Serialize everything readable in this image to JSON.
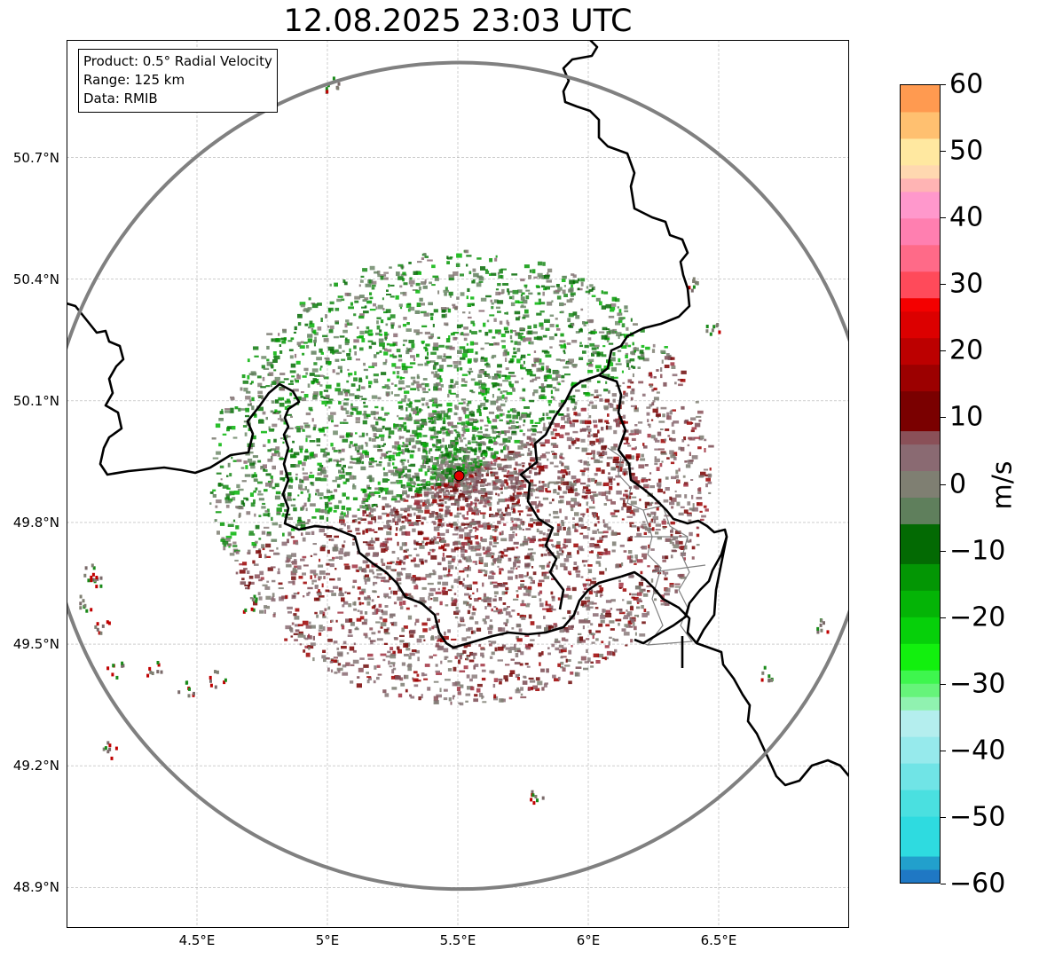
{
  "title": "12.08.2025 23:03 UTC",
  "info": {
    "product": "Product: 0.5° Radial Velocity",
    "range": "Range: 125 km",
    "data": "Data: RMIB"
  },
  "map": {
    "lon_range": [
      4.0,
      7.0
    ],
    "lat_range": [
      48.8,
      50.99
    ],
    "radar_site": {
      "lon": 5.505,
      "lat": 49.915
    },
    "range_ring_km": 125,
    "x_ticks": [
      {
        "lon": 4.5,
        "label": "4.5°E"
      },
      {
        "lon": 5.0,
        "label": "5°E"
      },
      {
        "lon": 5.5,
        "label": "5.5°E"
      },
      {
        "lon": 6.0,
        "label": "6°E"
      },
      {
        "lon": 6.5,
        "label": "6.5°E"
      }
    ],
    "y_ticks": [
      {
        "lat": 50.7,
        "label": "50.7°N"
      },
      {
        "lat": 50.4,
        "label": "50.4°N"
      },
      {
        "lat": 50.1,
        "label": "50.1°N"
      },
      {
        "lat": 49.8,
        "label": "49.8°N"
      },
      {
        "lat": 49.5,
        "label": "49.5°N"
      },
      {
        "lat": 49.2,
        "label": "49.2°N"
      },
      {
        "lat": 48.9,
        "label": "48.9°N"
      }
    ],
    "grid": true,
    "colors": {
      "ring": "#808080",
      "border": "#000000",
      "admin_border": "#808080",
      "grid": "#b0b0b0",
      "site": "#e00000"
    }
  },
  "colorbar": {
    "unit": "m/s",
    "min": -60,
    "max": 60,
    "ticks": [
      {
        "value": 60,
        "label": "60"
      },
      {
        "value": 50,
        "label": "50"
      },
      {
        "value": 40,
        "label": "40"
      },
      {
        "value": 30,
        "label": "30"
      },
      {
        "value": 20,
        "label": "20"
      },
      {
        "value": 10,
        "label": "10"
      },
      {
        "value": 0,
        "label": "0"
      },
      {
        "value": -10,
        "label": "−10"
      },
      {
        "value": -20,
        "label": "−20"
      },
      {
        "value": -30,
        "label": "−30"
      },
      {
        "value": -40,
        "label": "−40"
      },
      {
        "value": -50,
        "label": "−50"
      },
      {
        "value": -60,
        "label": "−60"
      }
    ],
    "stops": [
      {
        "from": -60,
        "to": -58,
        "color": "#1f78c4"
      },
      {
        "from": -58,
        "to": -56,
        "color": "#22a0cc"
      },
      {
        "from": -56,
        "to": -50,
        "color": "#2edbe0"
      },
      {
        "from": -50,
        "to": -46,
        "color": "#4ae0e0"
      },
      {
        "from": -46,
        "to": -42,
        "color": "#70e4e6"
      },
      {
        "from": -42,
        "to": -38,
        "color": "#96eaec"
      },
      {
        "from": -38,
        "to": -34,
        "color": "#b4eeee"
      },
      {
        "from": -34,
        "to": -32,
        "color": "#90f2b0"
      },
      {
        "from": -32,
        "to": -30,
        "color": "#66f47a"
      },
      {
        "from": -30,
        "to": -28,
        "color": "#3ef64e"
      },
      {
        "from": -28,
        "to": -24,
        "color": "#12f00e"
      },
      {
        "from": -24,
        "to": -20,
        "color": "#06d00a"
      },
      {
        "from": -20,
        "to": -16,
        "color": "#04b406"
      },
      {
        "from": -16,
        "to": -12,
        "color": "#039604"
      },
      {
        "from": -12,
        "to": -6,
        "color": "#036a03"
      },
      {
        "from": -6,
        "to": -2,
        "color": "#5f7f5c"
      },
      {
        "from": -2,
        "to": 2,
        "color": "#7f7f72"
      },
      {
        "from": 2,
        "to": 6,
        "color": "#8a6a72"
      },
      {
        "from": 6,
        "to": 8,
        "color": "#8a5058"
      },
      {
        "from": 8,
        "to": 14,
        "color": "#7a0000"
      },
      {
        "from": 14,
        "to": 18,
        "color": "#9c0000"
      },
      {
        "from": 18,
        "to": 22,
        "color": "#bc0000"
      },
      {
        "from": 22,
        "to": 26,
        "color": "#dc0000"
      },
      {
        "from": 26,
        "to": 28,
        "color": "#f40000"
      },
      {
        "from": 28,
        "to": 32,
        "color": "#ff4a5a"
      },
      {
        "from": 32,
        "to": 36,
        "color": "#ff6a88"
      },
      {
        "from": 36,
        "to": 40,
        "color": "#ff7fb0"
      },
      {
        "from": 40,
        "to": 44,
        "color": "#ff98cc"
      },
      {
        "from": 44,
        "to": 46,
        "color": "#ffb4b4"
      },
      {
        "from": 46,
        "to": 48,
        "color": "#ffd8b0"
      },
      {
        "from": 48,
        "to": 52,
        "color": "#ffe8a0"
      },
      {
        "from": 52,
        "to": 56,
        "color": "#ffc070"
      },
      {
        "from": 56,
        "to": 60,
        "color": "#ff9a50"
      }
    ]
  }
}
